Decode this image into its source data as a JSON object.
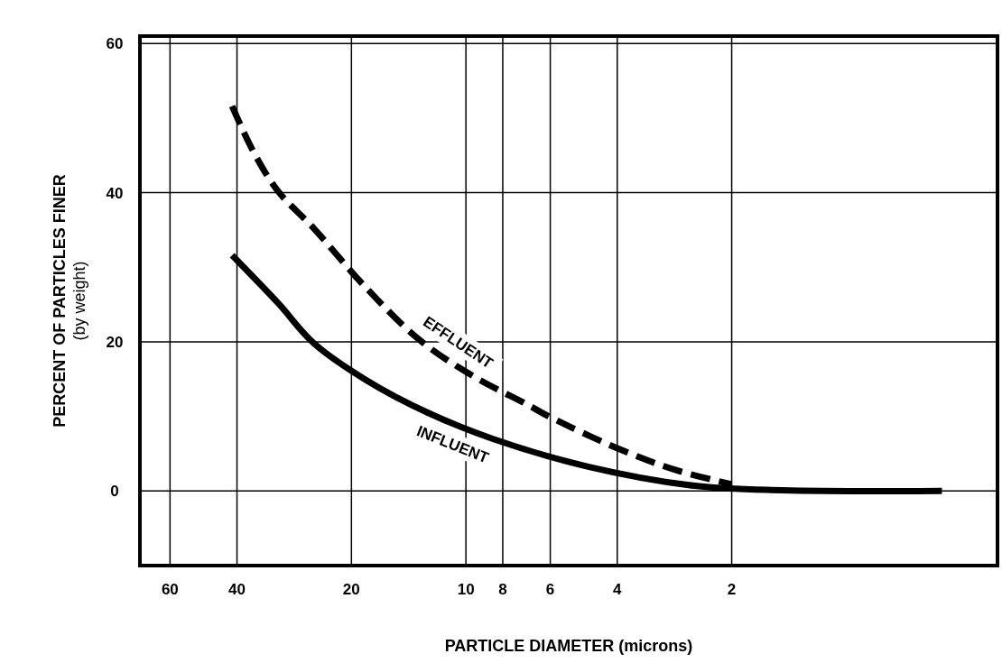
{
  "chart_data": {
    "type": "line",
    "xlabel": "PARTICLE DIAMETER (microns)",
    "ylabel": "PERCENT OF PARTICLES FINER\n(by weight)",
    "log": "x",
    "xlim": [
      72,
      0.4
    ],
    "xticks": [
      60,
      40,
      20,
      10,
      8,
      6,
      4,
      2
    ],
    "ylim": [
      -10,
      61
    ],
    "yticks": [
      0,
      20,
      40,
      60
    ],
    "grid": true,
    "series": [
      {
        "name": "EFFLUENT",
        "color": "#000000",
        "line_style": "dashed",
        "x": [
          41.2,
          36.3,
          31.2,
          25.1,
          18.5,
          13.2,
          9.5,
          6.9,
          6.0,
          3.9,
          2.8,
          2.0
        ],
        "values": [
          51.6,
          45.6,
          40.2,
          35.2,
          27.5,
          20.2,
          15.3,
          11.6,
          9.9,
          5.5,
          2.8,
          0.9
        ]
      },
      {
        "name": "INFLUENT",
        "color": "#000000",
        "line_style": "solid",
        "x": [
          41.2,
          31.2,
          25.1,
          18.2,
          12.6,
          8.5,
          4.8,
          2.5,
          1.47,
          0.56
        ],
        "values": [
          31.6,
          25.2,
          19.8,
          14.8,
          10.5,
          7.0,
          3.3,
          0.7,
          0.1,
          0
        ]
      }
    ]
  }
}
